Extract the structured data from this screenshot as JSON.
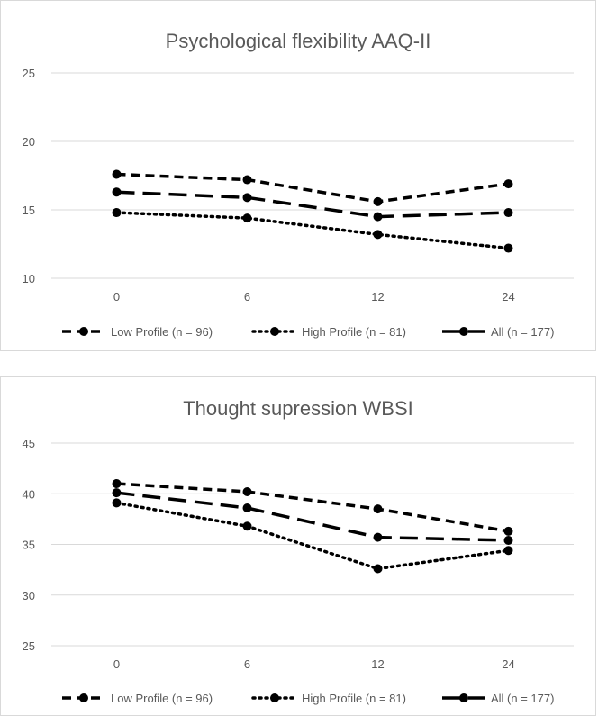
{
  "chart_data": [
    {
      "type": "line",
      "title": "Psychological flexibility AAQ-II",
      "xlabel": "",
      "ylabel": "",
      "categories": [
        "0",
        "6",
        "12",
        "24"
      ],
      "y_ticks": [
        "10",
        "15",
        "20",
        "25"
      ],
      "ylim": [
        10,
        25
      ],
      "grid": true,
      "legend_position": "bottom",
      "series": [
        {
          "name": "Low Profile (n = 96)",
          "style": "short-dash",
          "values": [
            17.6,
            17.2,
            15.6,
            16.9
          ]
        },
        {
          "name": "High Profile (n = 81)",
          "style": "dotted",
          "values": [
            14.8,
            14.4,
            13.2,
            12.2
          ]
        },
        {
          "name": "All (n = 177)",
          "style": "long-dash",
          "values": [
            16.3,
            15.9,
            14.5,
            14.8
          ]
        }
      ]
    },
    {
      "type": "line",
      "title": "Thought supression WBSI",
      "xlabel": "",
      "ylabel": "",
      "categories": [
        "0",
        "6",
        "12",
        "24"
      ],
      "y_ticks": [
        "25",
        "30",
        "35",
        "40",
        "45"
      ],
      "ylim": [
        25,
        45
      ],
      "grid": true,
      "legend_position": "bottom",
      "series": [
        {
          "name": "Low Profile (n = 96)",
          "style": "short-dash",
          "values": [
            41.0,
            40.2,
            38.5,
            36.3
          ]
        },
        {
          "name": "High Profile (n = 81)",
          "style": "dotted",
          "values": [
            39.1,
            36.8,
            32.6,
            34.4
          ]
        },
        {
          "name": "All (n = 177)",
          "style": "long-dash",
          "values": [
            40.1,
            38.6,
            35.7,
            35.4
          ]
        }
      ]
    }
  ]
}
